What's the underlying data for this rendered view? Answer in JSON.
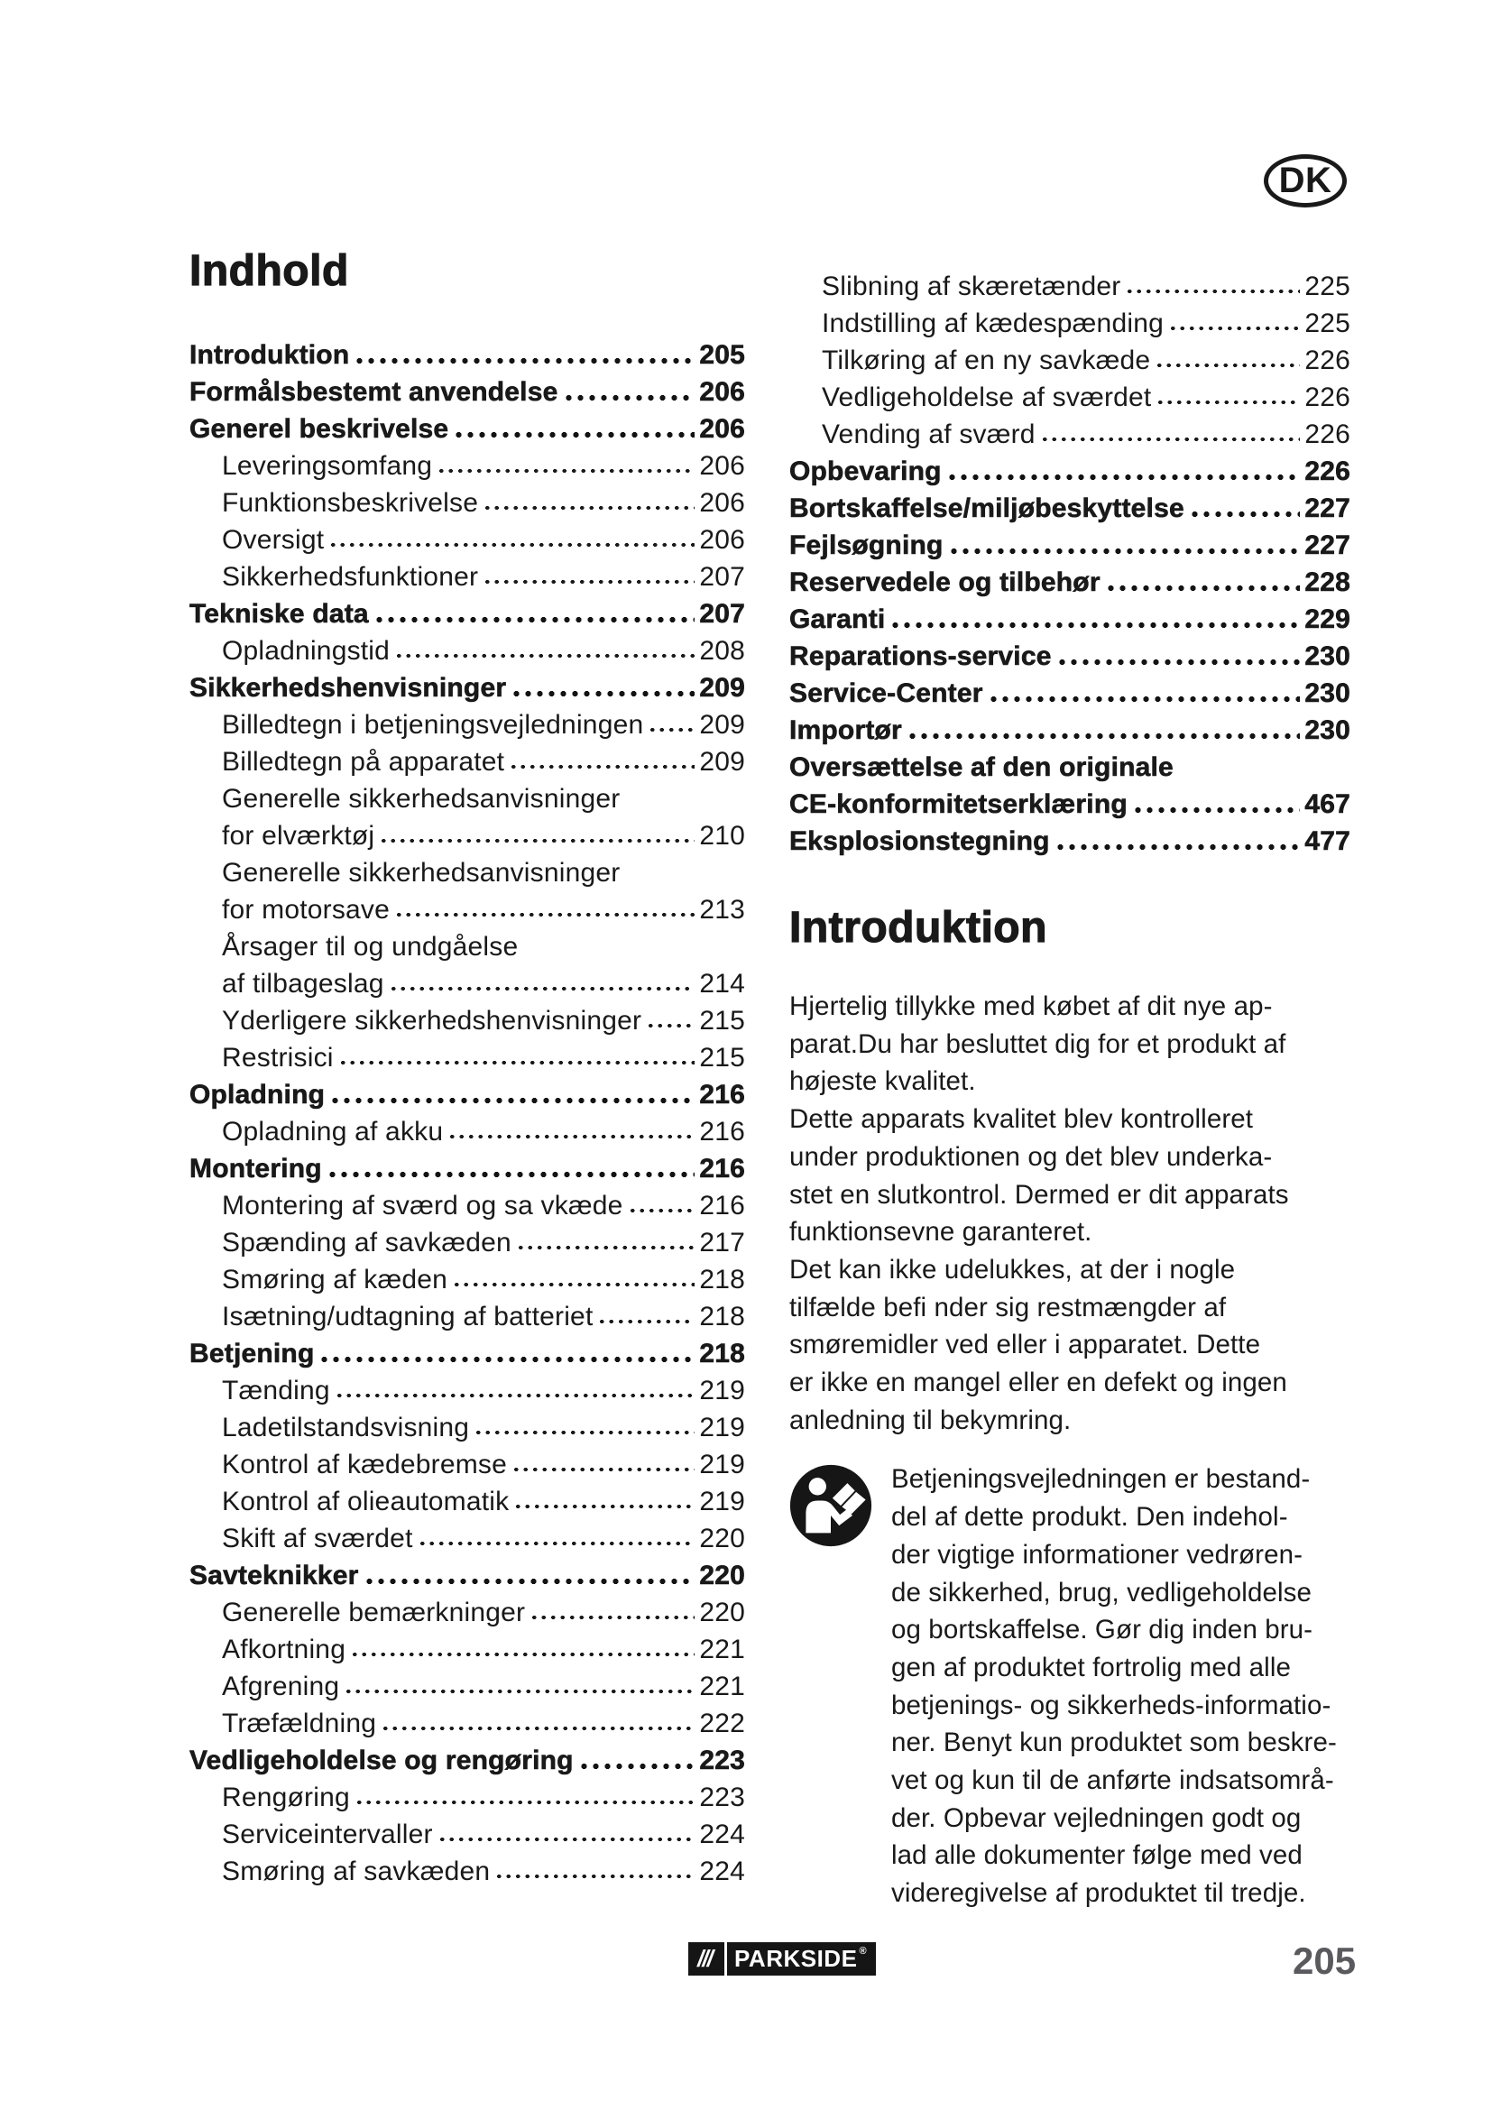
{
  "badge": {
    "label": "DK"
  },
  "colors": {
    "text": "#191919",
    "page_number_gray": "#5a5a5e",
    "logo_background": "#151515",
    "logo_foreground": "#ffffff"
  },
  "toc": {
    "title": "Indhold",
    "left": [
      {
        "label": "Introduktion",
        "page": "205",
        "bold": true
      },
      {
        "label": "Formålsbestemt anvendelse",
        "page": "206",
        "bold": true
      },
      {
        "label": "Generel beskrivelse",
        "page": "206",
        "bold": true
      },
      {
        "label": "Leveringsomfang",
        "page": "206"
      },
      {
        "label": "Funktionsbeskrivelse",
        "page": "206"
      },
      {
        "label": "Oversigt",
        "page": "206"
      },
      {
        "label": "Sikkerhedsfunktioner",
        "page": "207"
      },
      {
        "label": "Tekniske data",
        "page": "207",
        "bold": true
      },
      {
        "label": "Opladningstid",
        "page": "208"
      },
      {
        "label": "Sikkerhedshenvisninger",
        "page": "209",
        "bold": true
      },
      {
        "label": "Billedtegn i betjeningsvejledningen",
        "page": "209"
      },
      {
        "label": "Billedtegn på apparatet",
        "page": "209"
      },
      {
        "label": "Generelle sikkerhedsanvisninger"
      },
      {
        "label": "for elværktøj",
        "page": "210"
      },
      {
        "label": "Generelle sikkerhedsanvisninger"
      },
      {
        "label": "for motorsave",
        "page": "213"
      },
      {
        "label": "Årsager til og undgåelse"
      },
      {
        "label": "af tilbageslag",
        "page": "214"
      },
      {
        "label": "Yderligere sikkerhedshenvisninger",
        "page": "215"
      },
      {
        "label": "Restrisici",
        "page": "215"
      },
      {
        "label": "Opladning",
        "page": "216",
        "bold": true
      },
      {
        "label": "Opladning af akku",
        "page": "216"
      },
      {
        "label": "Montering",
        "page": "216",
        "bold": true
      },
      {
        "label": "Montering af sværd og sa vkæde",
        "page": "216"
      },
      {
        "label": "Spænding af savkæden",
        "page": "217"
      },
      {
        "label": "Smøring af kæden",
        "page": "218"
      },
      {
        "label": "Isætning/udtagning af batteriet",
        "page": "218"
      },
      {
        "label": "Betjening",
        "page": "218",
        "bold": true
      },
      {
        "label": "Tænding",
        "page": "219"
      },
      {
        "label": "Ladetilstandsvisning",
        "page": "219"
      },
      {
        "label": "Kontrol af kædebremse",
        "page": "219"
      },
      {
        "label": "Kontrol af olieautomatik",
        "page": "219"
      },
      {
        "label": "Skift af sværdet",
        "page": "220"
      },
      {
        "label": "Savteknikker",
        "page": "220",
        "bold": true
      },
      {
        "label": "Generelle bemærkninger",
        "page": "220"
      },
      {
        "label": "Afkortning",
        "page": "221"
      },
      {
        "label": "Afgrening",
        "page": "221"
      },
      {
        "label": "Træfældning",
        "page": "222"
      },
      {
        "label": "Vedligeholdelse og rengøring",
        "page": "223",
        "bold": true
      },
      {
        "label": "Rengøring",
        "page": "223"
      },
      {
        "label": "Serviceintervaller",
        "page": "224"
      },
      {
        "label": "Smøring af savkæden",
        "page": "224"
      }
    ],
    "right": [
      {
        "label": "Slibning af skæretænder",
        "page": "225"
      },
      {
        "label": "Indstilling af kædespænding",
        "page": "225"
      },
      {
        "label": "Tilkøring af en ny savkæde",
        "page": "226"
      },
      {
        "label": "Vedligeholdelse af sværdet",
        "page": "226"
      },
      {
        "label": "Vending af sværd",
        "page": "226"
      },
      {
        "label": "Opbevaring",
        "page": "226",
        "bold": true
      },
      {
        "label": "Bortskaffelse/miljøbeskyttelse",
        "page": "227",
        "bold": true
      },
      {
        "label": "Fejlsøgning",
        "page": "227",
        "bold": true
      },
      {
        "label": "Reservedele og tilbehør",
        "page": "228",
        "bold": true
      },
      {
        "label": "Garanti",
        "page": "229",
        "bold": true
      },
      {
        "label": "Reparations-service",
        "page": "230",
        "bold": true
      },
      {
        "label": "Service-Center",
        "page": "230",
        "bold": true
      },
      {
        "label": "Importør",
        "page": "230",
        "bold": true
      },
      {
        "label": "Oversættelse af den originale",
        "bold": true
      },
      {
        "label": "CE-konformitetserklæring",
        "page": "467",
        "bold": true
      },
      {
        "label": "Eksplosionstegning",
        "page": "477",
        "bold": true
      }
    ]
  },
  "intro": {
    "title": "Introduktion",
    "paragraphs": [
      "Hjertelig tillykke med købet af dit nye ap-\nparat.Du har besluttet dig for et produkt af\nhøjeste kvalitet.",
      "Dette apparats kvalitet blev kontrolleret\nunder produktionen og det blev underka-\nstet en slutkontrol. Dermed er dit apparats\nfunktionsevne garanteret.",
      "Det kan ikke udelukkes, at der i nogle\ntilfælde befi nder sig restmængder af\nsmøremidler ved eller i apparatet. Dette\ner ikke en mangel eller en defekt og ingen\nanledning til bekymring."
    ],
    "note_icon": "read-manual-icon",
    "note": "Betjeningsvejledningen er bestand-\ndel af dette produkt. Den indehol-\nder  vigtige informationer vedrøren-\nde sikkerhed, brug, vedligeholdelse\nog bortskaffelse. Gør dig inden bru-\ngen af produktet fortrolig med alle\nbetjenings- og sikkerheds-informatio-\nner. Benyt kun produktet som beskre-\nvet og kun til de anførte indsatsområ-\nder. Opbevar vejledningen godt og\nlad alle dokumenter følge med ved\nvideregivelse af produktet til tredje."
  },
  "footer": {
    "logo_slashes": "///",
    "logo_text": "PARKSIDE",
    "logo_reg": "®",
    "page_number": "205"
  }
}
